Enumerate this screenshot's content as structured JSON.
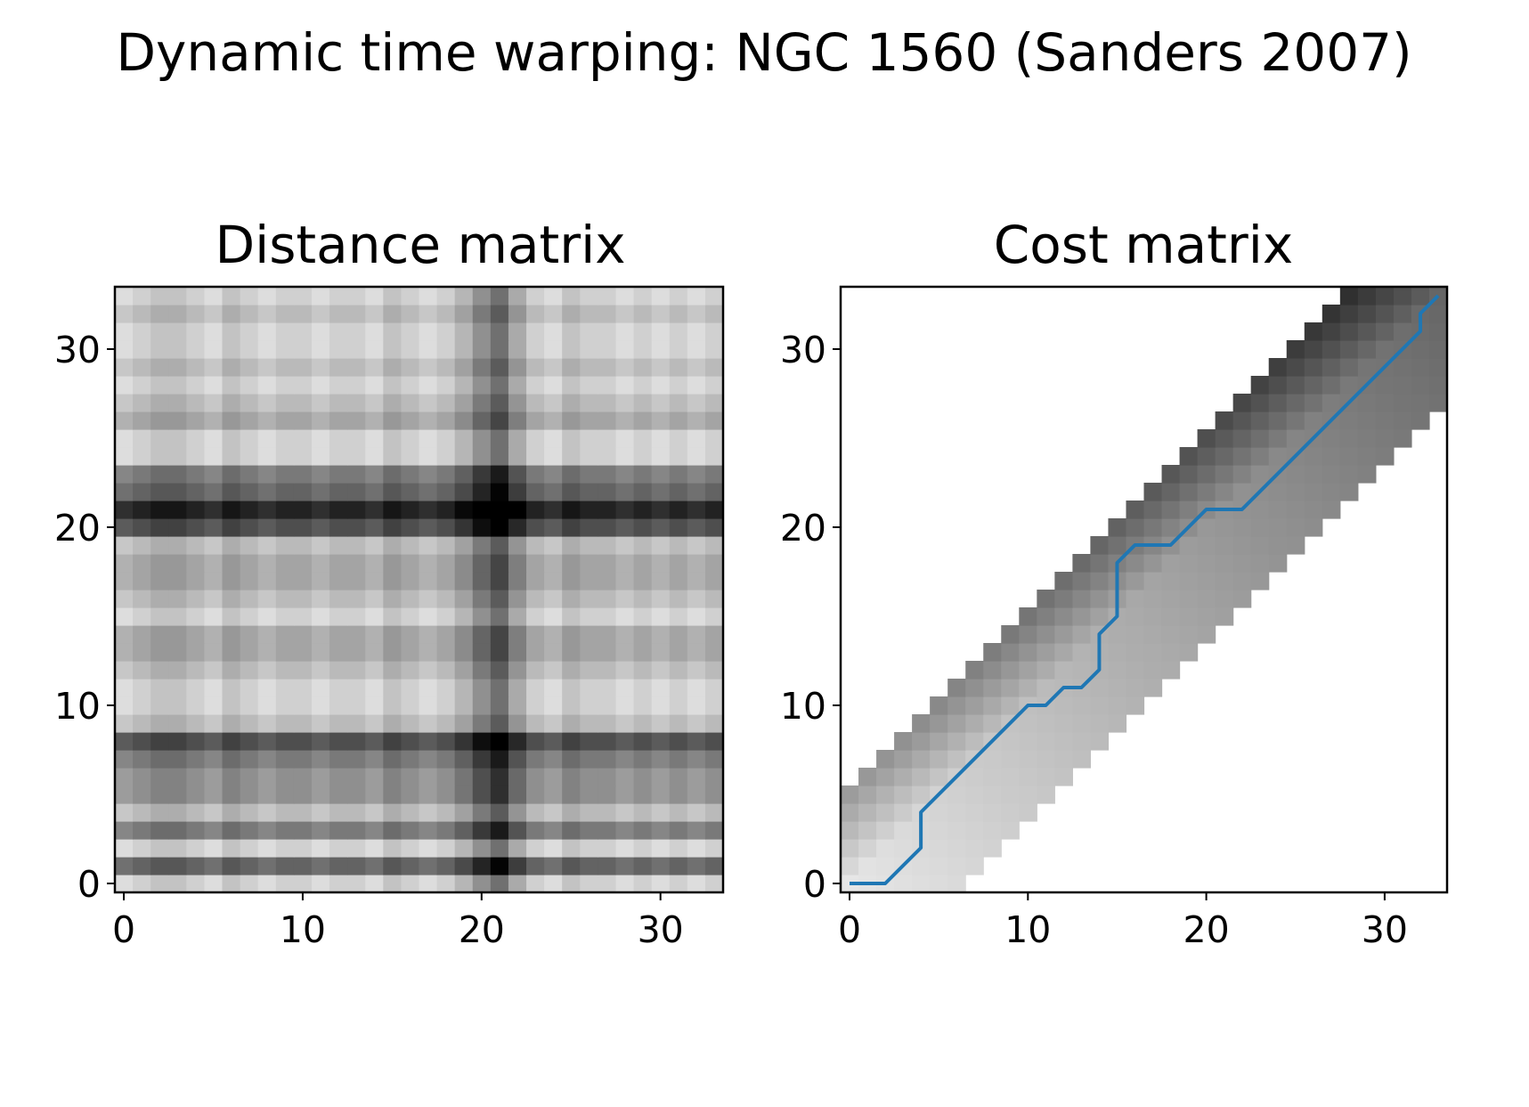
{
  "figure": {
    "suptitle": "Dynamic time warping: NGC 1560 (Sanders 2007)"
  },
  "chart_data": [
    {
      "type": "heatmap",
      "title": "Distance matrix",
      "xlabel": "",
      "ylabel": "",
      "xlim": [
        -0.5,
        33.5
      ],
      "ylim": [
        -0.5,
        33.5
      ],
      "xticks": [
        0,
        10,
        20,
        30
      ],
      "yticks": [
        0,
        10,
        20,
        30
      ],
      "colormap": "Greys",
      "size": [
        34,
        34
      ],
      "row_values": [
        0.1,
        0.6,
        0.1,
        0.5,
        0.2,
        0.4,
        0.4,
        0.5,
        0.7,
        0.2,
        0.1,
        0.1,
        0.2,
        0.3,
        0.3,
        0.1,
        0.2,
        0.3,
        0.3,
        0.2,
        0.7,
        0.9,
        0.6,
        0.5,
        0.1,
        0.1,
        0.3,
        0.2,
        0.1,
        0.2,
        0.1,
        0.1,
        0.2,
        0.1
      ],
      "col_values": [
        0.1,
        0.2,
        0.3,
        0.3,
        0.2,
        0.1,
        0.3,
        0.2,
        0.1,
        0.2,
        0.2,
        0.1,
        0.2,
        0.2,
        0.1,
        0.3,
        0.2,
        0.1,
        0.2,
        0.4,
        0.7,
        0.95,
        0.5,
        0.2,
        0.1,
        0.3,
        0.2,
        0.2,
        0.1,
        0.2,
        0.1,
        0.2,
        0.1,
        0.2
      ]
    },
    {
      "type": "heatmap",
      "title": "Cost matrix",
      "xlabel": "",
      "ylabel": "",
      "xlim": [
        -0.5,
        33.5
      ],
      "ylim": [
        -0.5,
        33.5
      ],
      "xticks": [
        0,
        10,
        20,
        30
      ],
      "yticks": [
        0,
        10,
        20,
        30
      ],
      "colormap": "Greys",
      "size": [
        34,
        34
      ],
      "band_lower": 6,
      "band_upper": 5,
      "warping_path": {
        "x": [
          0,
          2,
          4,
          4,
          10,
          11,
          12,
          13,
          14,
          14,
          15,
          15,
          16,
          18,
          20,
          22,
          32,
          32,
          33
        ],
        "y": [
          0,
          0,
          2,
          4,
          10,
          10,
          11,
          11,
          12,
          14,
          15,
          18,
          19,
          19,
          21,
          21,
          31,
          32,
          33
        ],
        "color": "#1f77b4"
      }
    }
  ]
}
